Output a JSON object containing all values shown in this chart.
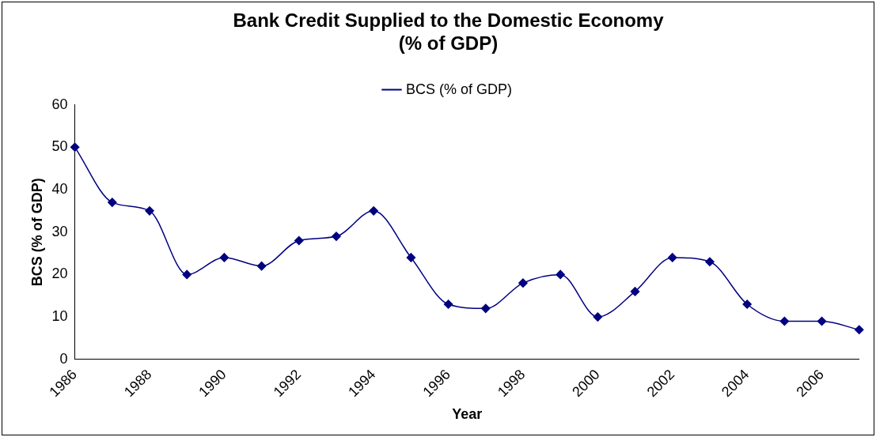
{
  "chart_data": {
    "type": "line",
    "title": "Bank Credit Supplied to the Domestic Economy\n(% of GDP)",
    "xlabel": "Year",
    "ylabel": "BCS (% of GDP)",
    "categories": [
      "1986",
      null,
      "1988",
      null,
      "1990",
      null,
      "1992",
      null,
      "1994",
      null,
      "1996",
      null,
      "1998",
      null,
      "2000",
      null,
      "2002",
      null,
      "2004",
      null,
      "2006",
      null
    ],
    "series": [
      {
        "name": "BCS (% of GDP)",
        "color": "#000080",
        "values": [
          50,
          37,
          35,
          20,
          24,
          22,
          28,
          29,
          35,
          24,
          13,
          12,
          18,
          20,
          10,
          16,
          24,
          23,
          13,
          9,
          9,
          7
        ]
      }
    ],
    "ylim": [
      0,
      60
    ],
    "yticks": [
      0,
      10,
      20,
      30,
      40,
      50,
      60
    ],
    "grid": false,
    "legend": "top",
    "marker": "diamond",
    "line_style": "solid"
  }
}
